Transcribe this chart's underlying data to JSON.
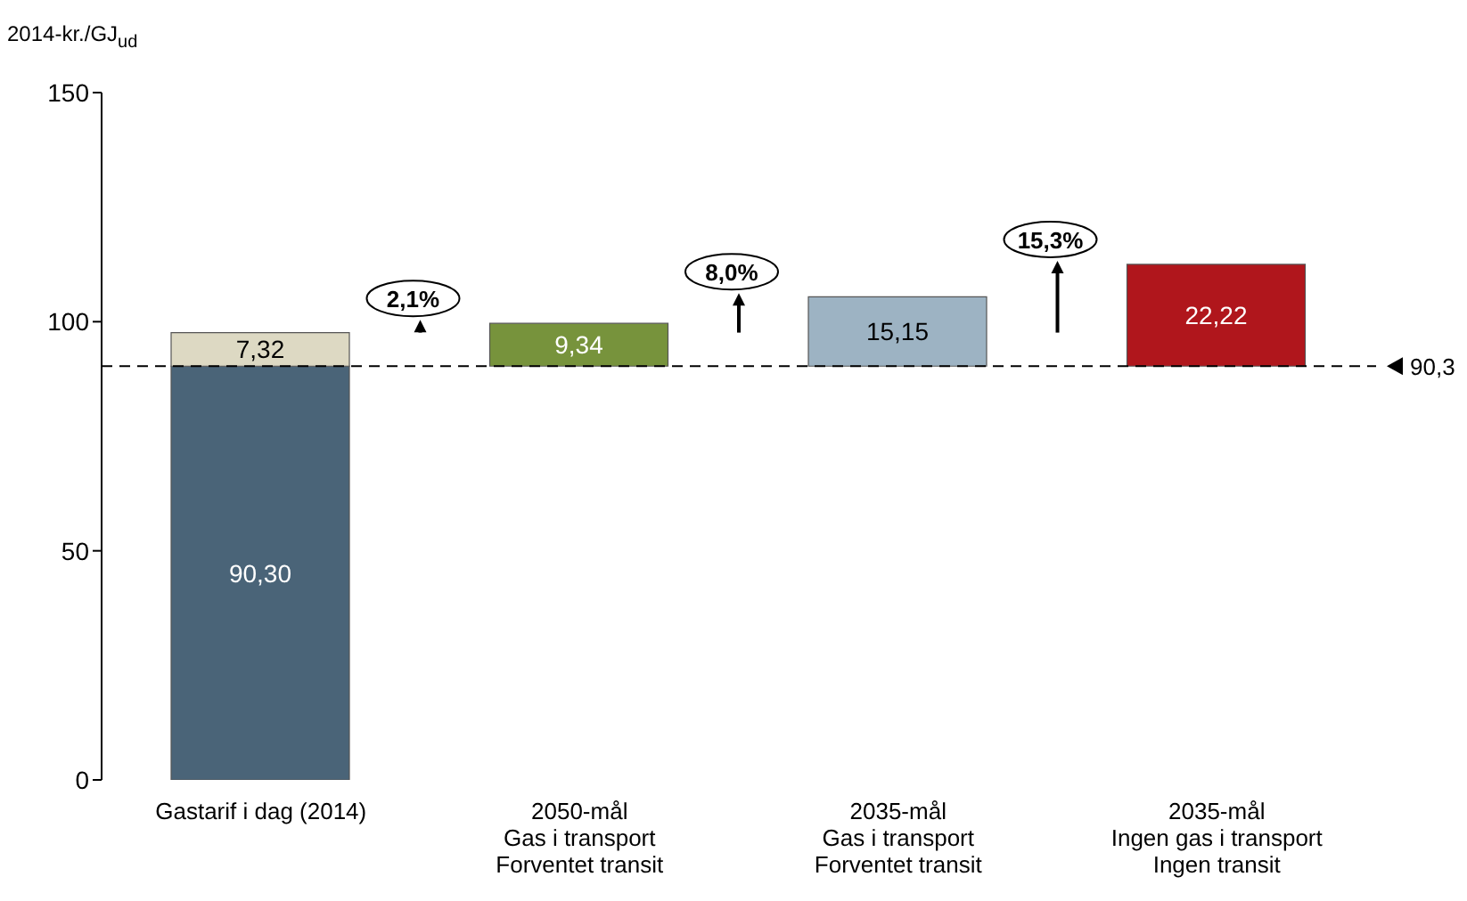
{
  "chart_data": {
    "type": "bar",
    "ylabel": "2014-kr./GJ$_{ud}$",
    "categories": [
      "Gastarif i dag (2014)",
      "2050-mål\nGas i transport\nForventet transit",
      "2035-mål\nGas i transport\nForventet transit",
      "2035-mål\nIngen gas i transport\nIngen transit"
    ],
    "series": [
      {
        "color": "#4a6478",
        "values": [
          90.3,
          null,
          null,
          null
        ],
        "value_labels": [
          "90,30",
          null,
          null,
          null
        ]
      },
      {
        "colors": [
          "#ddd9c3",
          "#77933c",
          "#9db3c3",
          "#b0161c"
        ],
        "values": [
          7.32,
          9.34,
          15.15,
          22.22
        ],
        "base": [
          90.3,
          90.3,
          90.3,
          90.3
        ],
        "value_labels": [
          "7,32",
          "9,34",
          "15,15",
          "22,22"
        ]
      }
    ],
    "ylim": [
      0,
      150
    ],
    "yticks": [
      0,
      50,
      100,
      150
    ],
    "grid": false,
    "legend": false,
    "ref_lines": [
      {
        "axis": "y",
        "value": 90.3,
        "label": "90,3",
        "line_style": "dashed",
        "color": "#000000"
      }
    ],
    "annotations": [
      "2,1%",
      "8,0%",
      "15,3%"
    ]
  }
}
